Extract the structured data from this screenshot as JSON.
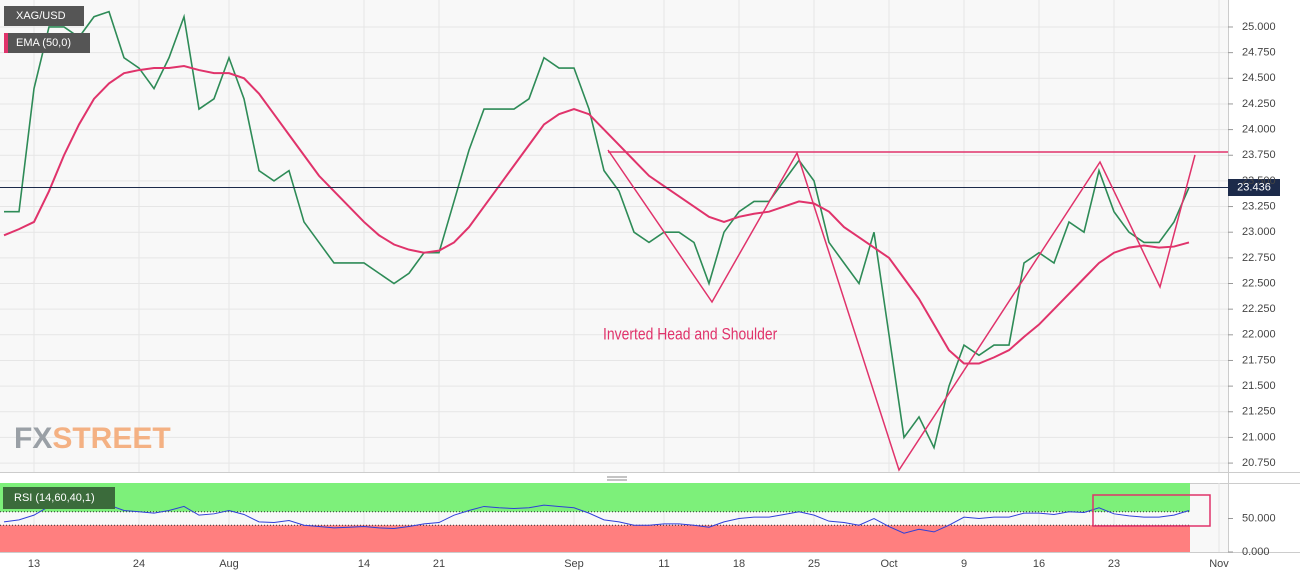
{
  "chart_data": [
    {
      "type": "line",
      "series": [
        {
          "name": "XAG/USD",
          "color": "#2e8b57",
          "values": [
            23.2,
            23.2,
            24.4,
            25.0,
            25.0,
            24.9,
            25.1,
            25.15,
            24.7,
            24.6,
            24.4,
            24.7,
            25.1,
            24.2,
            24.3,
            24.7,
            24.3,
            23.6,
            23.5,
            23.6,
            23.1,
            22.9,
            22.7,
            22.7,
            22.7,
            22.6,
            22.5,
            22.6,
            22.8,
            22.8,
            23.3,
            23.8,
            24.2,
            24.2,
            24.2,
            24.3,
            24.7,
            24.6,
            24.6,
            24.2,
            23.6,
            23.4,
            23.0,
            22.9,
            23.0,
            23.0,
            22.9,
            22.5,
            23.0,
            23.2,
            23.3,
            23.3,
            23.5,
            23.7,
            23.5,
            22.9,
            22.7,
            22.5,
            23.0,
            22.0,
            21.0,
            21.2,
            20.9,
            21.5,
            21.9,
            21.8,
            21.9,
            21.9,
            22.7,
            22.8,
            22.7,
            23.1,
            23.0,
            23.6,
            23.2,
            23.0,
            22.9,
            22.9,
            23.1,
            23.436,
            null,
            null
          ]
        },
        {
          "name": "EMA (50,0)",
          "color": "#e0336b",
          "values": [
            22.97,
            23.03,
            23.1,
            23.4,
            23.75,
            24.05,
            24.3,
            24.45,
            24.55,
            24.58,
            24.6,
            24.6,
            24.62,
            24.58,
            24.55,
            24.55,
            24.5,
            24.35,
            24.15,
            23.95,
            23.75,
            23.55,
            23.4,
            23.25,
            23.1,
            22.97,
            22.88,
            22.83,
            22.8,
            22.82,
            22.9,
            23.05,
            23.25,
            23.45,
            23.65,
            23.85,
            24.05,
            24.15,
            24.2,
            24.15,
            24.0,
            23.85,
            23.7,
            23.55,
            23.45,
            23.35,
            23.25,
            23.15,
            23.1,
            23.15,
            23.18,
            23.2,
            23.25,
            23.3,
            23.28,
            23.2,
            23.05,
            22.95,
            22.85,
            22.75,
            22.55,
            22.35,
            22.1,
            21.85,
            21.72,
            21.72,
            21.78,
            21.85,
            21.98,
            22.1,
            22.25,
            22.4,
            22.55,
            22.7,
            22.8,
            22.85,
            22.87,
            22.85,
            22.86,
            22.9,
            null,
            null
          ]
        }
      ],
      "categories": [
        null,
        null,
        "13",
        null,
        null,
        null,
        null,
        null,
        null,
        "24",
        null,
        null,
        null,
        null,
        null,
        "Aug",
        null,
        null,
        null,
        null,
        null,
        null,
        null,
        null,
        "14",
        null,
        null,
        null,
        null,
        "21",
        null,
        null,
        null,
        null,
        null,
        null,
        null,
        null,
        "Sep",
        null,
        null,
        null,
        null,
        null,
        "11",
        null,
        null,
        null,
        null,
        "18",
        null,
        null,
        null,
        null,
        "25",
        null,
        null,
        null,
        null,
        "Oct",
        null,
        null,
        null,
        null,
        "9",
        null,
        null,
        null,
        null,
        "16",
        null,
        null,
        null,
        null,
        "23",
        null,
        null,
        null,
        null,
        null,
        null,
        "Nov"
      ],
      "ylim": [
        20.663,
        25.263
      ],
      "yticks": [
        {
          "value": 20.75,
          "label": "20.750"
        },
        {
          "value": 21,
          "label": "21.000"
        },
        {
          "value": 21.25,
          "label": "21.250"
        },
        {
          "value": 21.5,
          "label": "21.500"
        },
        {
          "value": 21.75,
          "label": "21.750"
        },
        {
          "value": 22,
          "label": "22.000"
        },
        {
          "value": 22.25,
          "label": "22.250"
        },
        {
          "value": 22.5,
          "label": "22.500"
        },
        {
          "value": 22.75,
          "label": "22.750"
        },
        {
          "value": 23,
          "label": "23.000"
        },
        {
          "value": 23.25,
          "label": "23.250"
        },
        {
          "value": 23.5,
          "label": "23.500"
        },
        {
          "value": 23.75,
          "label": "23.750"
        },
        {
          "value": 24,
          "label": "24.000"
        },
        {
          "value": 24.25,
          "label": "24.250"
        },
        {
          "value": 24.5,
          "label": "24.500"
        },
        {
          "value": 24.75,
          "label": "24.750"
        },
        {
          "value": 25,
          "label": "25.000"
        }
      ],
      "current_price": 23.436,
      "annotation": "Inverted Head  and Shoulder",
      "watermark": [
        "FX",
        "STREET"
      ],
      "grid": true
    },
    {
      "type": "line",
      "series": [
        {
          "name": "RSI (14,60,40,1)",
          "color": "#2f3fd8",
          "values": [
            45,
            48,
            55,
            68,
            70,
            66,
            68,
            70,
            62,
            60,
            58,
            62,
            68,
            55,
            57,
            62,
            56,
            45,
            44,
            47,
            40,
            38,
            36,
            37,
            38,
            36,
            35,
            38,
            42,
            44,
            55,
            62,
            68,
            66,
            65,
            66,
            70,
            68,
            66,
            58,
            48,
            45,
            40,
            40,
            42,
            42,
            40,
            37,
            45,
            50,
            52,
            52,
            56,
            60,
            55,
            46,
            44,
            40,
            50,
            38,
            28,
            34,
            30,
            40,
            52,
            50,
            52,
            52,
            58,
            58,
            56,
            60,
            59,
            66,
            57,
            54,
            52,
            52,
            55,
            62,
            null,
            null
          ]
        }
      ],
      "levels": [
        60,
        40
      ],
      "ylim": [
        0,
        103
      ],
      "yticks": [
        {
          "value": 50,
          "label": "50.000"
        },
        {
          "value": 0,
          "label": "0.000"
        }
      ]
    }
  ]
}
